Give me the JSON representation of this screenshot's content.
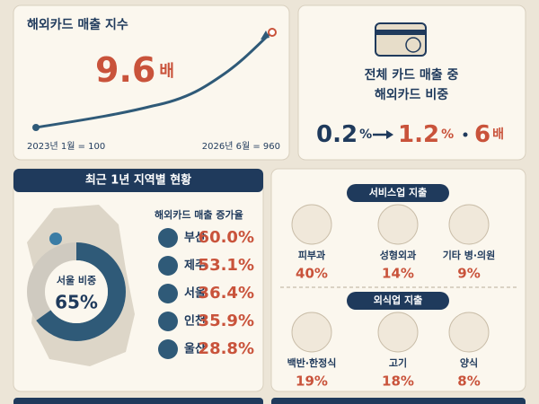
{
  "index_panel": {
    "title": "해외카드 매출 지수",
    "multiple": "9.6",
    "multiple_unit": "배",
    "start_label": "2023년 1월 = 100",
    "end_label": "2026년 6월 = 960"
  },
  "share_panel": {
    "title_line1": "전체 카드 매출 중",
    "title_line2": "해외카드 비중",
    "from": "0.2",
    "from_unit": "%",
    "to": "1.2",
    "to_unit": "%",
    "multiple": "6",
    "multiple_unit": "배"
  },
  "region_panel": {
    "header": "최근 1년 지역별 현황",
    "donut": {
      "label": "서울 비중",
      "value": 65,
      "value_label": "65%"
    },
    "list_title": "해외카드 매출 증가율",
    "rows": [
      {
        "name": "부산",
        "value": 60,
        "label": "60.0%"
      },
      {
        "name": "제주",
        "value": 53.1,
        "label": "53.1%"
      },
      {
        "name": "서울",
        "value": 36.4,
        "label": "36.4%"
      },
      {
        "name": "인천",
        "value": 35.9,
        "label": "35.9%"
      },
      {
        "name": "울산",
        "value": 28.8,
        "label": "28.8%"
      }
    ]
  },
  "spending_panel": {
    "service_title": "서비스업 지출",
    "service": [
      {
        "name": "피부과",
        "value": 40,
        "label": "40%"
      },
      {
        "name": "성형외과",
        "value": 14,
        "label": "14%"
      },
      {
        "name": "기타 병·의원",
        "value": 9,
        "label": "9%"
      }
    ],
    "food_title": "외식업 지출",
    "food": [
      {
        "name": "백반·한정식",
        "value": 19,
        "label": "19%"
      },
      {
        "name": "고기",
        "value": 18,
        "label": "18%"
      },
      {
        "name": "양식",
        "value": 8,
        "label": "8%"
      }
    ]
  }
}
